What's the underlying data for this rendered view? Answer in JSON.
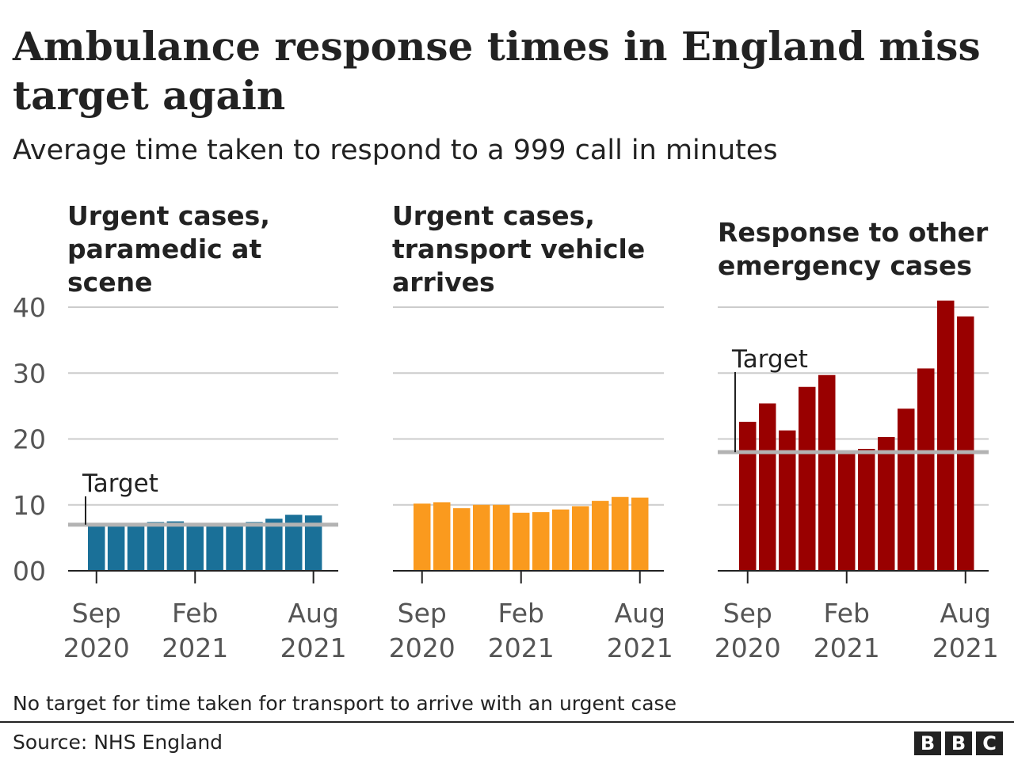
{
  "title": "Ambulance response times in England miss target again",
  "subtitle": "Average time taken to respond to a 999 call in minutes",
  "footnote": "No target for time taken for transport to arrive with an urgent case",
  "source": "Source: NHS England",
  "logo": [
    "B",
    "B",
    "C"
  ],
  "chart_data": [
    {
      "type": "bar",
      "title": "Urgent cases, paramedic at scene",
      "color": "#1a7098",
      "categories": [
        "Sep 2020",
        "Oct 2020",
        "Nov 2020",
        "Dec 2020",
        "Jan 2021",
        "Feb 2021",
        "Mar 2021",
        "Apr 2021",
        "May 2021",
        "Jun 2021",
        "Jul 2021",
        "Aug 2021"
      ],
      "values": [
        7.0,
        7.1,
        7.2,
        7.4,
        7.5,
        7.2,
        7.1,
        7.1,
        7.4,
        7.9,
        8.5,
        8.4
      ],
      "target": 7,
      "target_label": "Target",
      "ylim": [
        0,
        40
      ],
      "yticks": [
        0,
        10,
        20,
        30,
        40
      ],
      "ytick_labels": [
        "00",
        "10",
        "20",
        "30",
        "40"
      ],
      "xtick_labels": [
        {
          "index": 0,
          "line1": "Sep",
          "line2": "2020"
        },
        {
          "index": 5,
          "line1": "Feb",
          "line2": "2021"
        },
        {
          "index": 11,
          "line1": "Aug",
          "line2": "2021"
        }
      ],
      "grid": true
    },
    {
      "type": "bar",
      "title": "Urgent cases, transport vehicle arrives",
      "color": "#fa9a1e",
      "categories": [
        "Sep 2020",
        "Oct 2020",
        "Nov 2020",
        "Dec 2020",
        "Jan 2021",
        "Feb 2021",
        "Mar 2021",
        "Apr 2021",
        "May 2021",
        "Jun 2021",
        "Jul 2021",
        "Aug 2021"
      ],
      "values": [
        10.2,
        10.4,
        9.5,
        10.0,
        10.0,
        8.8,
        8.9,
        9.3,
        9.8,
        10.6,
        11.2,
        11.1
      ],
      "target": null,
      "ylim": [
        0,
        40
      ],
      "yticks": [
        0,
        10,
        20,
        30,
        40
      ],
      "xtick_labels": [
        {
          "index": 0,
          "line1": "Sep",
          "line2": "2020"
        },
        {
          "index": 5,
          "line1": "Feb",
          "line2": "2021"
        },
        {
          "index": 11,
          "line1": "Aug",
          "line2": "2021"
        }
      ],
      "grid": true
    },
    {
      "type": "bar",
      "title": "Response to other emergency cases",
      "color": "#990000",
      "categories": [
        "Sep 2020",
        "Oct 2020",
        "Nov 2020",
        "Dec 2020",
        "Jan 2021",
        "Feb 2021",
        "Mar 2021",
        "Apr 2021",
        "May 2021",
        "Jun 2021",
        "Jul 2021",
        "Aug 2021"
      ],
      "values": [
        22.6,
        25.4,
        21.3,
        27.9,
        29.7,
        18.1,
        18.5,
        20.3,
        24.6,
        30.7,
        41.0,
        38.6
      ],
      "target": 18,
      "target_label": "Target",
      "ylim": [
        0,
        40
      ],
      "yticks": [
        0,
        10,
        20,
        30,
        40
      ],
      "xtick_labels": [
        {
          "index": 0,
          "line1": "Sep",
          "line2": "2020"
        },
        {
          "index": 5,
          "line1": "Feb",
          "line2": "2021"
        },
        {
          "index": 11,
          "line1": "Aug",
          "line2": "2021"
        }
      ],
      "grid": true
    }
  ]
}
